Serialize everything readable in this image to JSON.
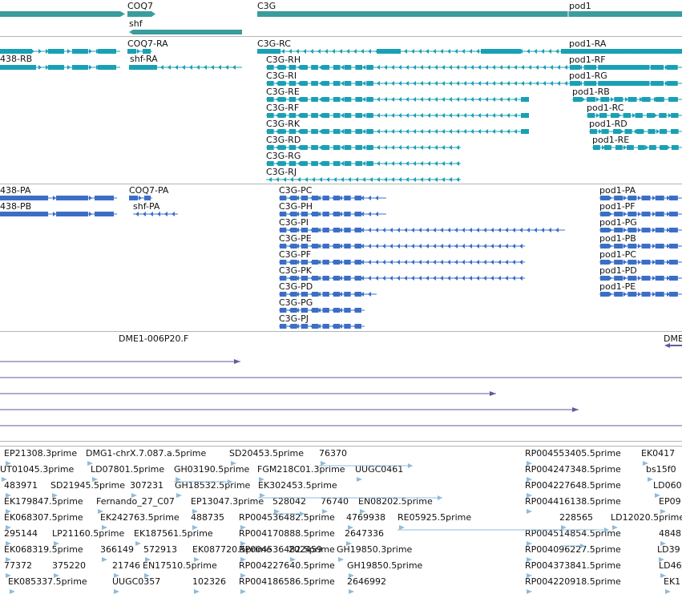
{
  "colors": {
    "gene": "#3a9c9c",
    "transcript": "#1aa0b4",
    "protein": "#3b6fc6",
    "clone": "#6a55a0",
    "est": "#8cbcda",
    "separator": "#b5b5b5",
    "text": "#111111"
  },
  "tracks": {
    "genes": {
      "labels": [
        "COQ7",
        "shf",
        "C3G",
        "pod1"
      ]
    },
    "transcripts": {
      "labels": [
        "438-RB",
        "COQ7-RA",
        "shf-RA",
        "C3G-RC",
        "C3G-RH",
        "C3G-RI",
        "C3G-RE",
        "C3G-RF",
        "C3G-RK",
        "C3G-RD",
        "C3G-RG",
        "C3G-RJ",
        "pod1-RA",
        "pod1-RF",
        "pod1-RG",
        "pod1-RB",
        "pod1-RC",
        "pod1-RD",
        "pod1-RE"
      ]
    },
    "proteins": {
      "labels": [
        "438-PA",
        "438-PB",
        "COQ7-PA",
        "shf-PA",
        "C3G-PC",
        "C3G-PH",
        "C3G-PI",
        "C3G-PE",
        "C3G-PF",
        "C3G-PK",
        "C3G-PD",
        "C3G-PG",
        "C3G-PJ",
        "pod1-PA",
        "pod1-PF",
        "pod1-PG",
        "pod1-PB",
        "pod1-PC",
        "pod1-PD",
        "pod1-PE"
      ]
    },
    "clones": {
      "labels": [
        "DME1-006P20.F",
        "DME"
      ]
    },
    "ests": {
      "labels": [
        "EP21308.3prime",
        "DMG1-chrX.7.087.a.5prime",
        "SD20453.5prime",
        "76370",
        "RP004553405.5prime",
        "EK0417",
        "UT01045.3prime",
        "LD07801.5prime",
        "GH03190.5prime",
        "FGM218C01.3prime",
        "UUGC0461",
        "RP004247348.5prime",
        "bs15f0",
        "483971",
        "SD21945.5prime",
        "307231",
        "GH18532.5prime",
        "EK302453.5prime",
        "RP004227648.5prime",
        "LD060",
        "EK179847.5prime",
        "Fernando_27_C07",
        "EP13047.3prime",
        "528042",
        "76740",
        "EN08202.5prime",
        "RP004416138.5prime",
        "EP09",
        "EK068307.5prime",
        "EK242763.5prime",
        "488735",
        "RP004536482.5prime",
        "4769938",
        "RE05925.5prime",
        "228565",
        "LD12020.5prime",
        "295144",
        "LP21160.5prime",
        "EK187561.5prime",
        "RP004170888.5prime",
        "2647336",
        "RP004514854.5prime",
        "4848",
        "EK068319.5prime",
        "366149",
        "572913",
        "EK087720.5prime",
        "RP004536482.5prime",
        "202459",
        "GH19850.3prime",
        "RP004096227.5prime",
        "LD39",
        "77372",
        "375220",
        "21746",
        "EN17510.5prime",
        "RP004227640.5prime",
        "GH19850.5prime",
        "RP004373841.5prime",
        "LD46",
        "EK085337.5prime",
        "UUGC0357",
        "102326",
        "RP004186586.5prime",
        "2646992",
        "RP004220918.5prime",
        "EK1"
      ]
    }
  }
}
